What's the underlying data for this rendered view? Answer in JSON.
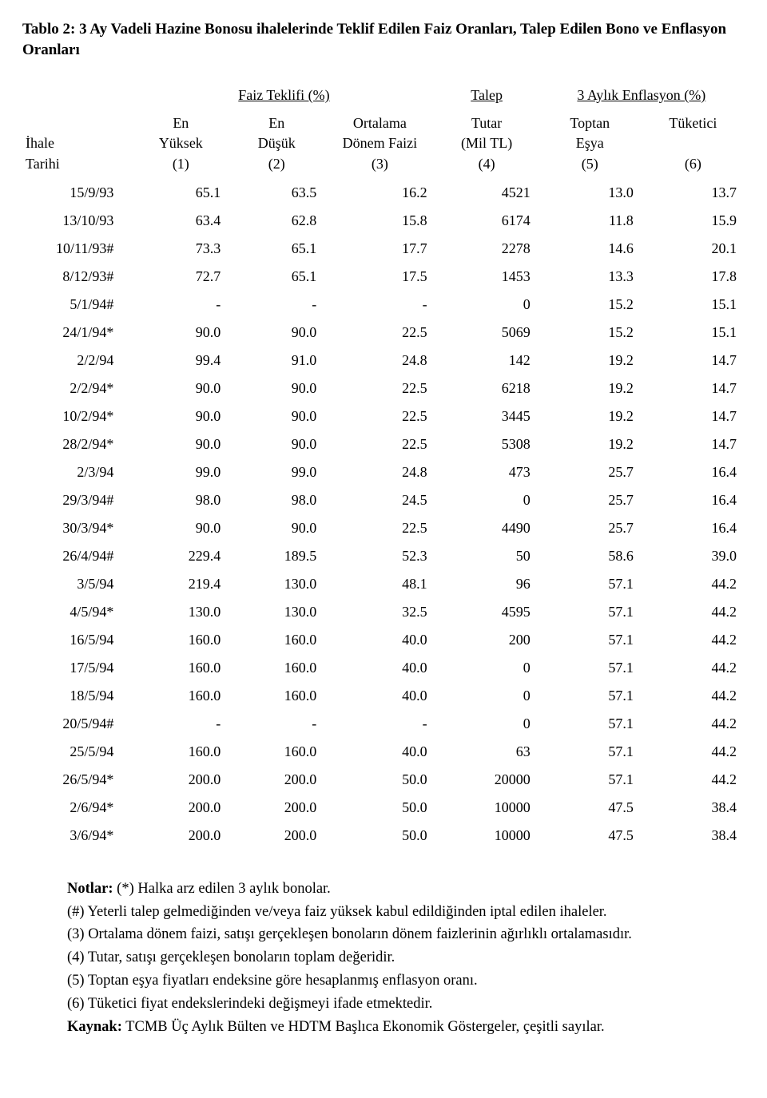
{
  "title": "Tablo 2: 3 Ay Vadeli Hazine Bonosu ihalelerinde Teklif Edilen Faiz Oranları, Talep Edilen Bono ve Enflasyon Oranları",
  "group_headers": {
    "g1": "Faiz Teklifi (%)",
    "g2": "Talep",
    "g3": "3 Aylık Enflasyon (%)"
  },
  "col_headers": {
    "c0a": "İhale",
    "c0b": "Tarihi",
    "c1a": "En",
    "c1b": "Yüksek",
    "c1c": "(1)",
    "c2a": "En",
    "c2b": "Düşük",
    "c2c": "(2)",
    "c3a": "Ortalama",
    "c3b": "Dönem Faizi",
    "c3c": "(3)",
    "c4a": "Tutar",
    "c4b": "(Mil TL)",
    "c4c": "(4)",
    "c5a": "Toptan",
    "c5b": "Eşya",
    "c5c": "(5)",
    "c6a": "Tüketici",
    "c6c": "(6)"
  },
  "rows": [
    {
      "date": "15/9/93",
      "high": "65.1",
      "low": "63.5",
      "avg": "16.2",
      "amt": "4521",
      "wpi": "13.0",
      "cpi": "13.7"
    },
    {
      "date": "13/10/93",
      "high": "63.4",
      "low": "62.8",
      "avg": "15.8",
      "amt": "6174",
      "wpi": "11.8",
      "cpi": "15.9"
    },
    {
      "date": "10/11/93#",
      "high": "73.3",
      "low": "65.1",
      "avg": "17.7",
      "amt": "2278",
      "wpi": "14.6",
      "cpi": "20.1"
    },
    {
      "date": "8/12/93#",
      "high": "72.7",
      "low": "65.1",
      "avg": "17.5",
      "amt": "1453",
      "wpi": "13.3",
      "cpi": "17.8"
    },
    {
      "date": "5/1/94#",
      "high": "-",
      "low": "-",
      "avg": "-",
      "amt": "0",
      "wpi": "15.2",
      "cpi": "15.1"
    },
    {
      "date": "24/1/94*",
      "high": "90.0",
      "low": "90.0",
      "avg": "22.5",
      "amt": "5069",
      "wpi": "15.2",
      "cpi": "15.1"
    },
    {
      "date": "2/2/94",
      "high": "99.4",
      "low": "91.0",
      "avg": "24.8",
      "amt": "142",
      "wpi": "19.2",
      "cpi": "14.7"
    },
    {
      "date": "2/2/94*",
      "high": "90.0",
      "low": "90.0",
      "avg": "22.5",
      "amt": "6218",
      "wpi": "19.2",
      "cpi": "14.7"
    },
    {
      "date": "10/2/94*",
      "high": "90.0",
      "low": "90.0",
      "avg": "22.5",
      "amt": "3445",
      "wpi": "19.2",
      "cpi": "14.7"
    },
    {
      "date": "28/2/94*",
      "high": "90.0",
      "low": "90.0",
      "avg": "22.5",
      "amt": "5308",
      "wpi": "19.2",
      "cpi": "14.7"
    },
    {
      "date": "2/3/94",
      "high": "99.0",
      "low": "99.0",
      "avg": "24.8",
      "amt": "473",
      "wpi": "25.7",
      "cpi": "16.4"
    },
    {
      "date": "29/3/94#",
      "high": "98.0",
      "low": "98.0",
      "avg": "24.5",
      "amt": "0",
      "wpi": "25.7",
      "cpi": "16.4"
    },
    {
      "date": "30/3/94*",
      "high": "90.0",
      "low": "90.0",
      "avg": "22.5",
      "amt": "4490",
      "wpi": "25.7",
      "cpi": "16.4"
    },
    {
      "date": "26/4/94#",
      "high": "229.4",
      "low": "189.5",
      "avg": "52.3",
      "amt": "50",
      "wpi": "58.6",
      "cpi": "39.0"
    },
    {
      "date": "3/5/94",
      "high": "219.4",
      "low": "130.0",
      "avg": "48.1",
      "amt": "96",
      "wpi": "57.1",
      "cpi": "44.2"
    },
    {
      "date": "4/5/94*",
      "high": "130.0",
      "low": "130.0",
      "avg": "32.5",
      "amt": "4595",
      "wpi": "57.1",
      "cpi": "44.2"
    },
    {
      "date": "16/5/94",
      "high": "160.0",
      "low": "160.0",
      "avg": "40.0",
      "amt": "200",
      "wpi": "57.1",
      "cpi": "44.2"
    },
    {
      "date": "17/5/94",
      "high": "160.0",
      "low": "160.0",
      "avg": "40.0",
      "amt": "0",
      "wpi": "57.1",
      "cpi": "44.2"
    },
    {
      "date": "18/5/94",
      "high": "160.0",
      "low": "160.0",
      "avg": "40.0",
      "amt": "0",
      "wpi": "57.1",
      "cpi": "44.2"
    },
    {
      "date": "20/5/94#",
      "high": "-",
      "low": "-",
      "avg": "-",
      "amt": "0",
      "wpi": "57.1",
      "cpi": "44.2"
    },
    {
      "date": "25/5/94",
      "high": "160.0",
      "low": "160.0",
      "avg": "40.0",
      "amt": "63",
      "wpi": "57.1",
      "cpi": "44.2"
    },
    {
      "date": "26/5/94*",
      "high": "200.0",
      "low": "200.0",
      "avg": "50.0",
      "amt": "20000",
      "wpi": "57.1",
      "cpi": "44.2"
    },
    {
      "date": "2/6/94*",
      "high": "200.0",
      "low": "200.0",
      "avg": "50.0",
      "amt": "10000",
      "wpi": "47.5",
      "cpi": "38.4"
    },
    {
      "date": "3/6/94*",
      "high": "200.0",
      "low": "200.0",
      "avg": "50.0",
      "amt": "10000",
      "wpi": "47.5",
      "cpi": "38.4"
    }
  ],
  "notes": {
    "label": "Notlar:",
    "n1": " (*) Halka arz edilen 3 aylık bonolar.",
    "n2": "(#) Yeterli talep gelmediğinden ve/veya faiz yüksek kabul edildiğinden iptal edilen ihaleler.",
    "n3": "(3) Ortalama dönem faizi, satışı gerçekleşen bonoların dönem faizlerinin ağırlıklı ortalamasıdır.",
    "n4": "(4) Tutar, satışı gerçekleşen bonoların toplam değeridir.",
    "n5": "(5) Toptan eşya fiyatları endeksine göre hesaplanmış enflasyon oranı.",
    "n6": "(6) Tüketici fiyat endekslerindeki değişmeyi ifade etmektedir.",
    "src_label": "Kaynak:",
    "src": " TCMB Üç Aylık Bülten ve HDTM Başlıca Ekonomik Göstergeler, çeşitli sayılar."
  },
  "col_widths": [
    "15%",
    "13%",
    "13%",
    "15%",
    "14%",
    "14%",
    "14%"
  ]
}
